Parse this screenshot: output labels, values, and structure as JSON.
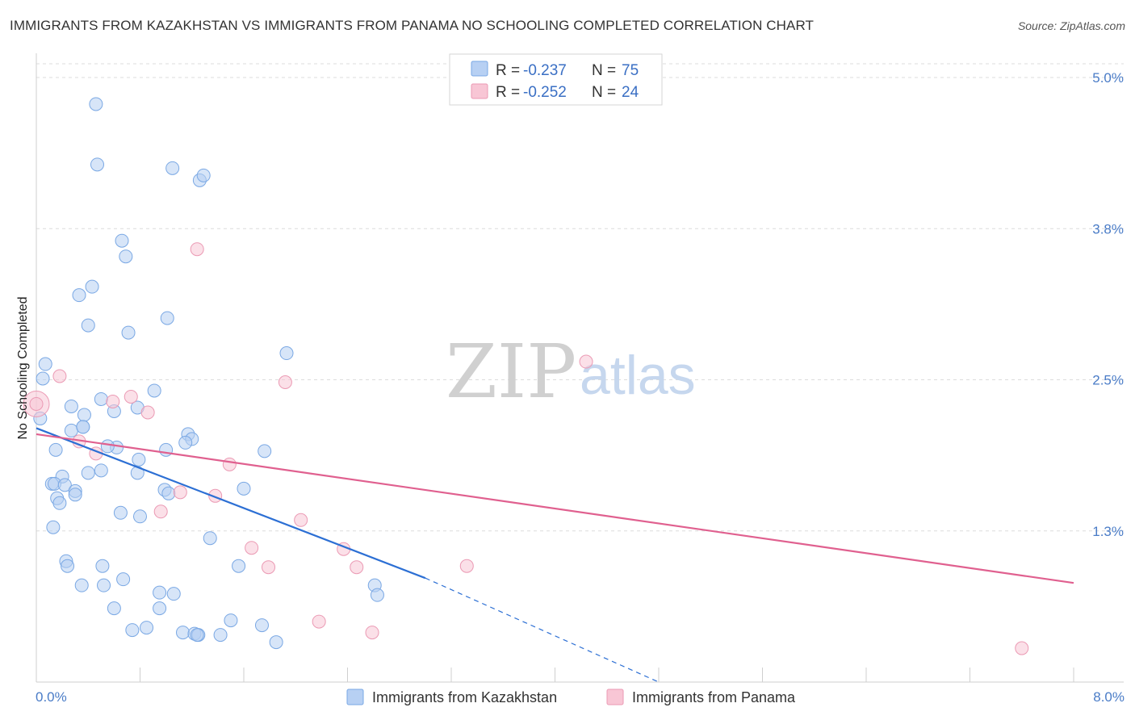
{
  "header": {
    "title": "IMMIGRANTS FROM KAZAKHSTAN VS IMMIGRANTS FROM PANAMA NO SCHOOLING COMPLETED CORRELATION CHART",
    "source": "Source: ZipAtlas.com"
  },
  "watermark": {
    "zip": "ZIP",
    "atlas": "atlas"
  },
  "colors": {
    "blue_fill": "#b7d0f3",
    "blue_stroke": "#7aa8e4",
    "blue_line": "#2c6fd4",
    "pink_fill": "#f8c6d5",
    "pink_stroke": "#eb9ab4",
    "pink_line": "#e0608f",
    "tick_text": "#4a7cc7"
  },
  "stats": {
    "series1": {
      "r_label": "R = ",
      "r_value": "-0.237",
      "n_label": "N = ",
      "n_value": "75"
    },
    "series2": {
      "r_label": "R = ",
      "r_value": "-0.252",
      "n_label": "N = ",
      "n_value": "24"
    }
  },
  "chart_data": {
    "type": "scatter",
    "title": "IMMIGRANTS FROM KAZAKHSTAN VS IMMIGRANTS FROM PANAMA NO SCHOOLING COMPLETED CORRELATION CHART",
    "xlabel": "",
    "ylabel": "No Schooling Completed",
    "xlim": [
      0,
      8.0
    ],
    "ylim": [
      0,
      5.0
    ],
    "x_tick_labels": {
      "left": "0.0%",
      "right": "8.0%"
    },
    "y_ticks": [
      {
        "value": 5.0,
        "label": "5.0%"
      },
      {
        "value": 3.75,
        "label": "3.8%"
      },
      {
        "value": 2.5,
        "label": "2.5%"
      },
      {
        "value": 1.25,
        "label": "1.3%"
      }
    ],
    "grid": true,
    "legend_position": "bottom-center",
    "series": [
      {
        "name": "Immigrants from Kazakhstan",
        "color": "#7aa8e4",
        "trend": {
          "x_start": 0.0,
          "y_start": 2.1,
          "x_solid_end": 3.0,
          "y_solid_end": 0.86,
          "x_dash_end": 4.8,
          "y_dash_end": 0.0
        },
        "points": [
          [
            0.46,
            4.78
          ],
          [
            0.47,
            4.28
          ],
          [
            1.05,
            4.25
          ],
          [
            1.26,
            4.15
          ],
          [
            1.29,
            4.19
          ],
          [
            0.66,
            3.65
          ],
          [
            0.69,
            3.52
          ],
          [
            0.43,
            3.27
          ],
          [
            0.33,
            3.2
          ],
          [
            0.4,
            2.95
          ],
          [
            1.01,
            3.01
          ],
          [
            0.71,
            2.89
          ],
          [
            0.07,
            2.63
          ],
          [
            0.05,
            2.51
          ],
          [
            1.93,
            2.72
          ],
          [
            0.03,
            2.18
          ],
          [
            0.27,
            2.28
          ],
          [
            0.5,
            2.34
          ],
          [
            0.37,
            2.21
          ],
          [
            0.78,
            2.27
          ],
          [
            0.91,
            2.41
          ],
          [
            0.6,
            2.24
          ],
          [
            0.27,
            2.08
          ],
          [
            0.36,
            2.11
          ],
          [
            0.36,
            2.11
          ],
          [
            0.15,
            1.92
          ],
          [
            0.62,
            1.94
          ],
          [
            0.55,
            1.95
          ],
          [
            0.79,
            1.84
          ],
          [
            1.0,
            1.92
          ],
          [
            1.17,
            2.05
          ],
          [
            1.2,
            2.01
          ],
          [
            1.15,
            1.98
          ],
          [
            1.76,
            1.91
          ],
          [
            0.2,
            1.7
          ],
          [
            0.12,
            1.64
          ],
          [
            0.14,
            1.64
          ],
          [
            0.22,
            1.63
          ],
          [
            0.5,
            1.75
          ],
          [
            0.4,
            1.73
          ],
          [
            0.3,
            1.58
          ],
          [
            0.3,
            1.55
          ],
          [
            0.16,
            1.52
          ],
          [
            0.18,
            1.48
          ],
          [
            0.78,
            1.73
          ],
          [
            0.99,
            1.59
          ],
          [
            1.02,
            1.56
          ],
          [
            1.6,
            1.6
          ],
          [
            0.65,
            1.4
          ],
          [
            0.8,
            1.37
          ],
          [
            0.13,
            1.28
          ],
          [
            1.34,
            1.19
          ],
          [
            0.23,
            1.0
          ],
          [
            0.24,
            0.96
          ],
          [
            0.51,
            0.96
          ],
          [
            1.56,
            0.96
          ],
          [
            0.67,
            0.85
          ],
          [
            0.35,
            0.8
          ],
          [
            0.52,
            0.8
          ],
          [
            0.95,
            0.74
          ],
          [
            1.06,
            0.73
          ],
          [
            2.61,
            0.8
          ],
          [
            2.63,
            0.72
          ],
          [
            0.6,
            0.61
          ],
          [
            0.95,
            0.61
          ],
          [
            0.74,
            0.43
          ],
          [
            0.85,
            0.45
          ],
          [
            1.13,
            0.41
          ],
          [
            1.22,
            0.4
          ],
          [
            1.25,
            0.39
          ],
          [
            1.42,
            0.39
          ],
          [
            1.5,
            0.51
          ],
          [
            1.74,
            0.47
          ],
          [
            1.85,
            0.33
          ],
          [
            1.24,
            0.39
          ]
        ]
      },
      {
        "name": "Immigrants from Panama",
        "color": "#eb9ab4",
        "trend": {
          "x_start": 0.0,
          "y_start": 2.05,
          "x_end": 8.0,
          "y_end": 0.82
        },
        "points": [
          [
            0.0,
            2.3
          ],
          [
            0.18,
            2.53
          ],
          [
            0.73,
            2.36
          ],
          [
            0.59,
            2.32
          ],
          [
            0.86,
            2.23
          ],
          [
            1.24,
            3.58
          ],
          [
            1.92,
            2.48
          ],
          [
            4.24,
            2.65
          ],
          [
            0.33,
            1.99
          ],
          [
            0.46,
            1.89
          ],
          [
            1.49,
            1.8
          ],
          [
            1.11,
            1.57
          ],
          [
            1.38,
            1.54
          ],
          [
            0.96,
            1.41
          ],
          [
            2.04,
            1.34
          ],
          [
            1.66,
            1.11
          ],
          [
            2.37,
            1.1
          ],
          [
            1.79,
            0.95
          ],
          [
            2.47,
            0.95
          ],
          [
            3.32,
            0.96
          ],
          [
            2.18,
            0.5
          ],
          [
            2.59,
            0.41
          ],
          [
            7.6,
            0.28
          ],
          [
            0.0,
            2.3
          ]
        ]
      }
    ]
  },
  "legend": {
    "items": [
      {
        "label": "Immigrants from Kazakhstan"
      },
      {
        "label": "Immigrants from Panama"
      }
    ]
  }
}
